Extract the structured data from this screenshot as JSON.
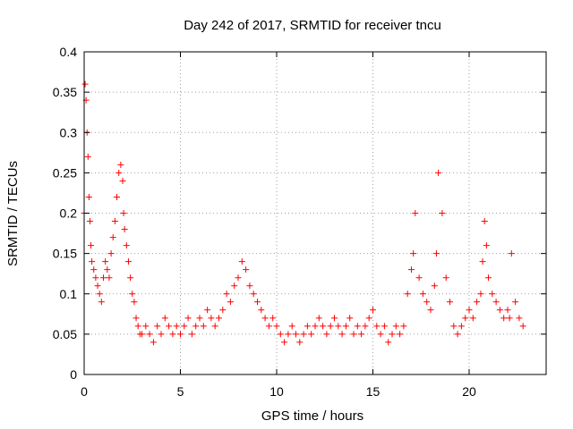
{
  "chart_data": {
    "type": "scatter",
    "title": "Day 242 of 2017, SRMTID for receiver tncu",
    "xlabel": "GPS time / hours",
    "ylabel": "SRMTID / TECUs",
    "xlim": [
      0,
      24
    ],
    "ylim": [
      0,
      0.4
    ],
    "xticks": [
      "0",
      "5",
      "10",
      "15",
      "20"
    ],
    "yticks": [
      "0",
      "0.05",
      "0.1",
      "0.15",
      "0.2",
      "0.25",
      "0.3",
      "0.35",
      "0.4"
    ],
    "grid": true,
    "marker": "plus",
    "color": "#ff0000",
    "series": [
      {
        "x": [
          0.0,
          0.05,
          0.1,
          0.15,
          0.2,
          0.25,
          0.3,
          0.35,
          0.4,
          0.5,
          0.6,
          0.7,
          0.8,
          0.9,
          1.0,
          1.1,
          1.2,
          1.3,
          1.4,
          1.5,
          1.6,
          1.7,
          1.8,
          1.9,
          2.0,
          2.05,
          2.1,
          2.2,
          2.3,
          2.4,
          2.5,
          2.6,
          2.7,
          2.8,
          2.9,
          3.0,
          3.2,
          3.4,
          3.6,
          3.8,
          4.0,
          4.2,
          4.4,
          4.6,
          4.8,
          5.0,
          5.2,
          5.4,
          5.6,
          5.8,
          6.0,
          6.2,
          6.4,
          6.6,
          6.8,
          7.0,
          7.2,
          7.4,
          7.6,
          7.8,
          8.0,
          8.2,
          8.4,
          8.6,
          8.8,
          9.0,
          9.2,
          9.4,
          9.6,
          9.8,
          10.0,
          10.2,
          10.4,
          10.6,
          10.8,
          11.0,
          11.2,
          11.4,
          11.6,
          11.8,
          12.0,
          12.2,
          12.4,
          12.6,
          12.8,
          13.0,
          13.2,
          13.4,
          13.6,
          13.8,
          14.0,
          14.2,
          14.4,
          14.6,
          14.8,
          15.0,
          15.2,
          15.4,
          15.6,
          15.8,
          16.0,
          16.2,
          16.4,
          16.6,
          16.8,
          17.0,
          17.1,
          17.2,
          17.4,
          17.6,
          17.8,
          18.0,
          18.2,
          18.3,
          18.4,
          18.6,
          18.8,
          19.0,
          19.2,
          19.4,
          19.6,
          19.8,
          20.0,
          20.2,
          20.4,
          20.6,
          20.7,
          20.8,
          20.9,
          21.0,
          21.2,
          21.4,
          21.6,
          21.8,
          22.0,
          22.1,
          22.2,
          22.4,
          22.6,
          22.8
        ],
        "y": [
          0.2,
          0.36,
          0.34,
          0.3,
          0.27,
          0.22,
          0.19,
          0.16,
          0.14,
          0.13,
          0.12,
          0.11,
          0.1,
          0.09,
          0.12,
          0.14,
          0.13,
          0.12,
          0.15,
          0.17,
          0.19,
          0.22,
          0.25,
          0.26,
          0.24,
          0.2,
          0.18,
          0.16,
          0.14,
          0.12,
          0.1,
          0.09,
          0.07,
          0.06,
          0.05,
          0.05,
          0.06,
          0.05,
          0.04,
          0.06,
          0.05,
          0.07,
          0.06,
          0.05,
          0.06,
          0.05,
          0.06,
          0.07,
          0.05,
          0.06,
          0.07,
          0.06,
          0.08,
          0.07,
          0.06,
          0.07,
          0.08,
          0.1,
          0.09,
          0.11,
          0.12,
          0.14,
          0.13,
          0.11,
          0.1,
          0.09,
          0.08,
          0.07,
          0.06,
          0.07,
          0.06,
          0.05,
          0.04,
          0.05,
          0.06,
          0.05,
          0.04,
          0.05,
          0.06,
          0.05,
          0.06,
          0.07,
          0.06,
          0.05,
          0.06,
          0.07,
          0.06,
          0.05,
          0.06,
          0.07,
          0.05,
          0.06,
          0.05,
          0.06,
          0.07,
          0.08,
          0.06,
          0.05,
          0.06,
          0.04,
          0.05,
          0.06,
          0.05,
          0.06,
          0.1,
          0.13,
          0.15,
          0.2,
          0.12,
          0.1,
          0.09,
          0.08,
          0.11,
          0.15,
          0.25,
          0.2,
          0.12,
          0.09,
          0.06,
          0.05,
          0.06,
          0.07,
          0.08,
          0.07,
          0.09,
          0.1,
          0.14,
          0.19,
          0.16,
          0.12,
          0.1,
          0.09,
          0.08,
          0.07,
          0.08,
          0.07,
          0.15,
          0.09,
          0.07,
          0.06
        ]
      }
    ]
  }
}
